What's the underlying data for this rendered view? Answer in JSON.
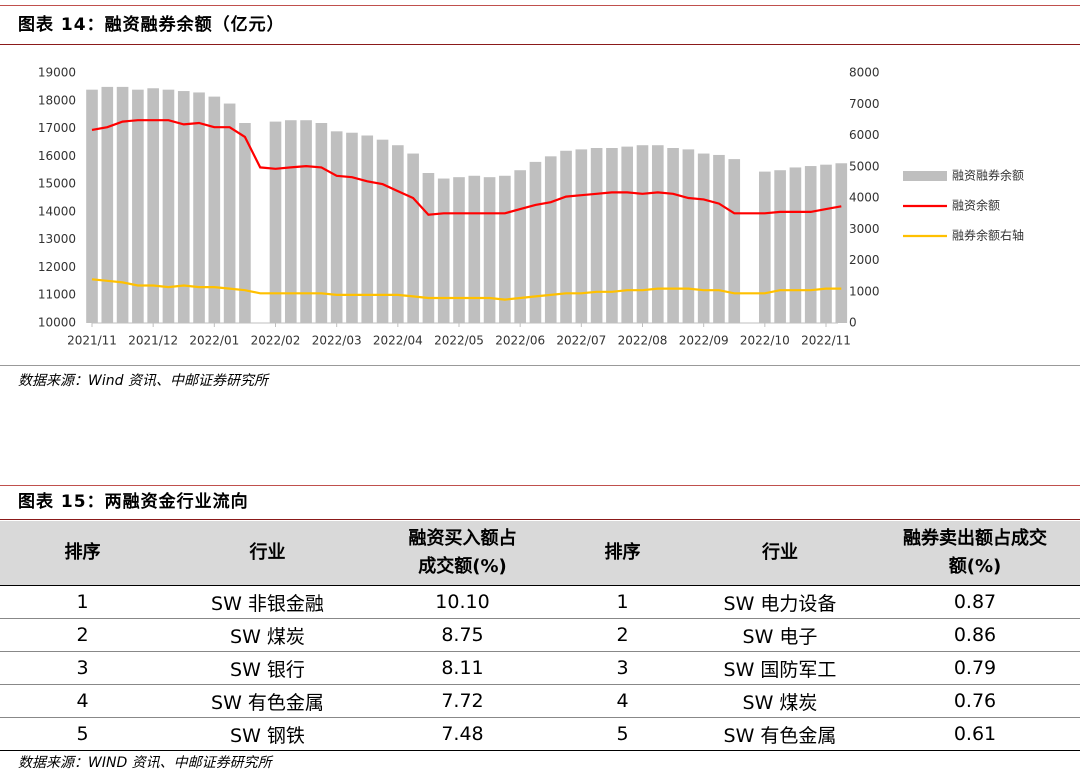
{
  "chart_data": {
    "type": "combo",
    "title": "图表 14：融资融券余额（亿元）",
    "categories": [
      "2021/11",
      null,
      null,
      null,
      "2021/12",
      null,
      null,
      null,
      "2022/01",
      null,
      null,
      null,
      "2022/02",
      null,
      null,
      null,
      "2022/03",
      null,
      null,
      null,
      "2022/04",
      null,
      null,
      null,
      "2022/05",
      null,
      null,
      null,
      "2022/06",
      null,
      null,
      null,
      "2022/07",
      null,
      null,
      null,
      "2022/08",
      null,
      null,
      null,
      "2022/09",
      null,
      null,
      null,
      "2022/10",
      null,
      null,
      null,
      "2022/11",
      null
    ],
    "series": [
      {
        "name": "融资融券余额",
        "type": "bar",
        "color": "#bfbfbf",
        "values": [
          18400,
          18500,
          18500,
          18400,
          18450,
          18400,
          18350,
          18300,
          18150,
          17900,
          17200,
          null,
          17250,
          17300,
          17300,
          17200,
          16900,
          16850,
          16750,
          16600,
          16400,
          16100,
          15400,
          15200,
          15250,
          15300,
          15250,
          15300,
          15500,
          15800,
          16000,
          16200,
          16250,
          16300,
          16300,
          16350,
          16400,
          16400,
          16300,
          16250,
          16100,
          16050,
          15900,
          null,
          15450,
          15500,
          15600,
          15650,
          15700,
          15750
        ]
      },
      {
        "name": "融资余额",
        "type": "line",
        "color": "#ff0000",
        "values": [
          16950,
          17050,
          17250,
          17300,
          17300,
          17300,
          17150,
          17200,
          17050,
          17050,
          16700,
          15600,
          15550,
          15600,
          15650,
          15600,
          15300,
          15250,
          15100,
          15000,
          14750,
          14500,
          13900,
          13950,
          13950,
          13950,
          13950,
          13950,
          14100,
          14250,
          14350,
          14550,
          14600,
          14650,
          14700,
          14700,
          14650,
          14700,
          14650,
          14500,
          14450,
          14300,
          13950,
          13950,
          13950,
          14000,
          14000,
          14000,
          14100,
          14200
        ]
      },
      {
        "name": "融券余额右轴",
        "type": "line",
        "axis": "y2",
        "color": "#ffc000",
        "values": [
          1400,
          1350,
          1300,
          1200,
          1200,
          1150,
          1200,
          1150,
          1150,
          1100,
          1050,
          950,
          950,
          950,
          950,
          950,
          900,
          900,
          900,
          900,
          900,
          850,
          800,
          800,
          800,
          800,
          800,
          750,
          800,
          850,
          900,
          950,
          950,
          1000,
          1000,
          1050,
          1050,
          1100,
          1100,
          1100,
          1050,
          1050,
          950,
          950,
          950,
          1050,
          1050,
          1050,
          1100,
          1100
        ]
      }
    ],
    "ylim": [
      10000,
      19000
    ],
    "yticks": [
      10000,
      11000,
      12000,
      13000,
      14000,
      15000,
      16000,
      17000,
      18000,
      19000
    ],
    "y2lim": [
      0,
      8000
    ],
    "y2ticks": [
      0,
      1000,
      2000,
      3000,
      4000,
      5000,
      6000,
      7000,
      8000
    ],
    "legend": "right"
  },
  "chart_source": "数据来源：Wind 资讯、中邮证券研究所",
  "table_title": "图表 15：两融资金行业流向",
  "table": {
    "header": [
      "排序",
      "行业",
      [
        "融资买入额占",
        "成交额(%)"
      ],
      "排序",
      "行业",
      [
        "融券卖出额占成交",
        "额(%)"
      ]
    ],
    "rows": [
      [
        "1",
        "SW 非银金融",
        "10.10",
        "1",
        "SW 电力设备",
        "0.87"
      ],
      [
        "2",
        "SW 煤炭",
        "8.75",
        "2",
        "SW 电子",
        "0.86"
      ],
      [
        "3",
        "SW 银行",
        "8.11",
        "3",
        "SW 国防军工",
        "0.79"
      ],
      [
        "4",
        "SW 有色金属",
        "7.72",
        "4",
        "SW 煤炭",
        "0.76"
      ],
      [
        "5",
        "SW 钢铁",
        "7.48",
        "5",
        "SW 有色金属",
        "0.61"
      ]
    ]
  },
  "table_source": "数据来源：WIND 资讯、中邮证券研究所"
}
